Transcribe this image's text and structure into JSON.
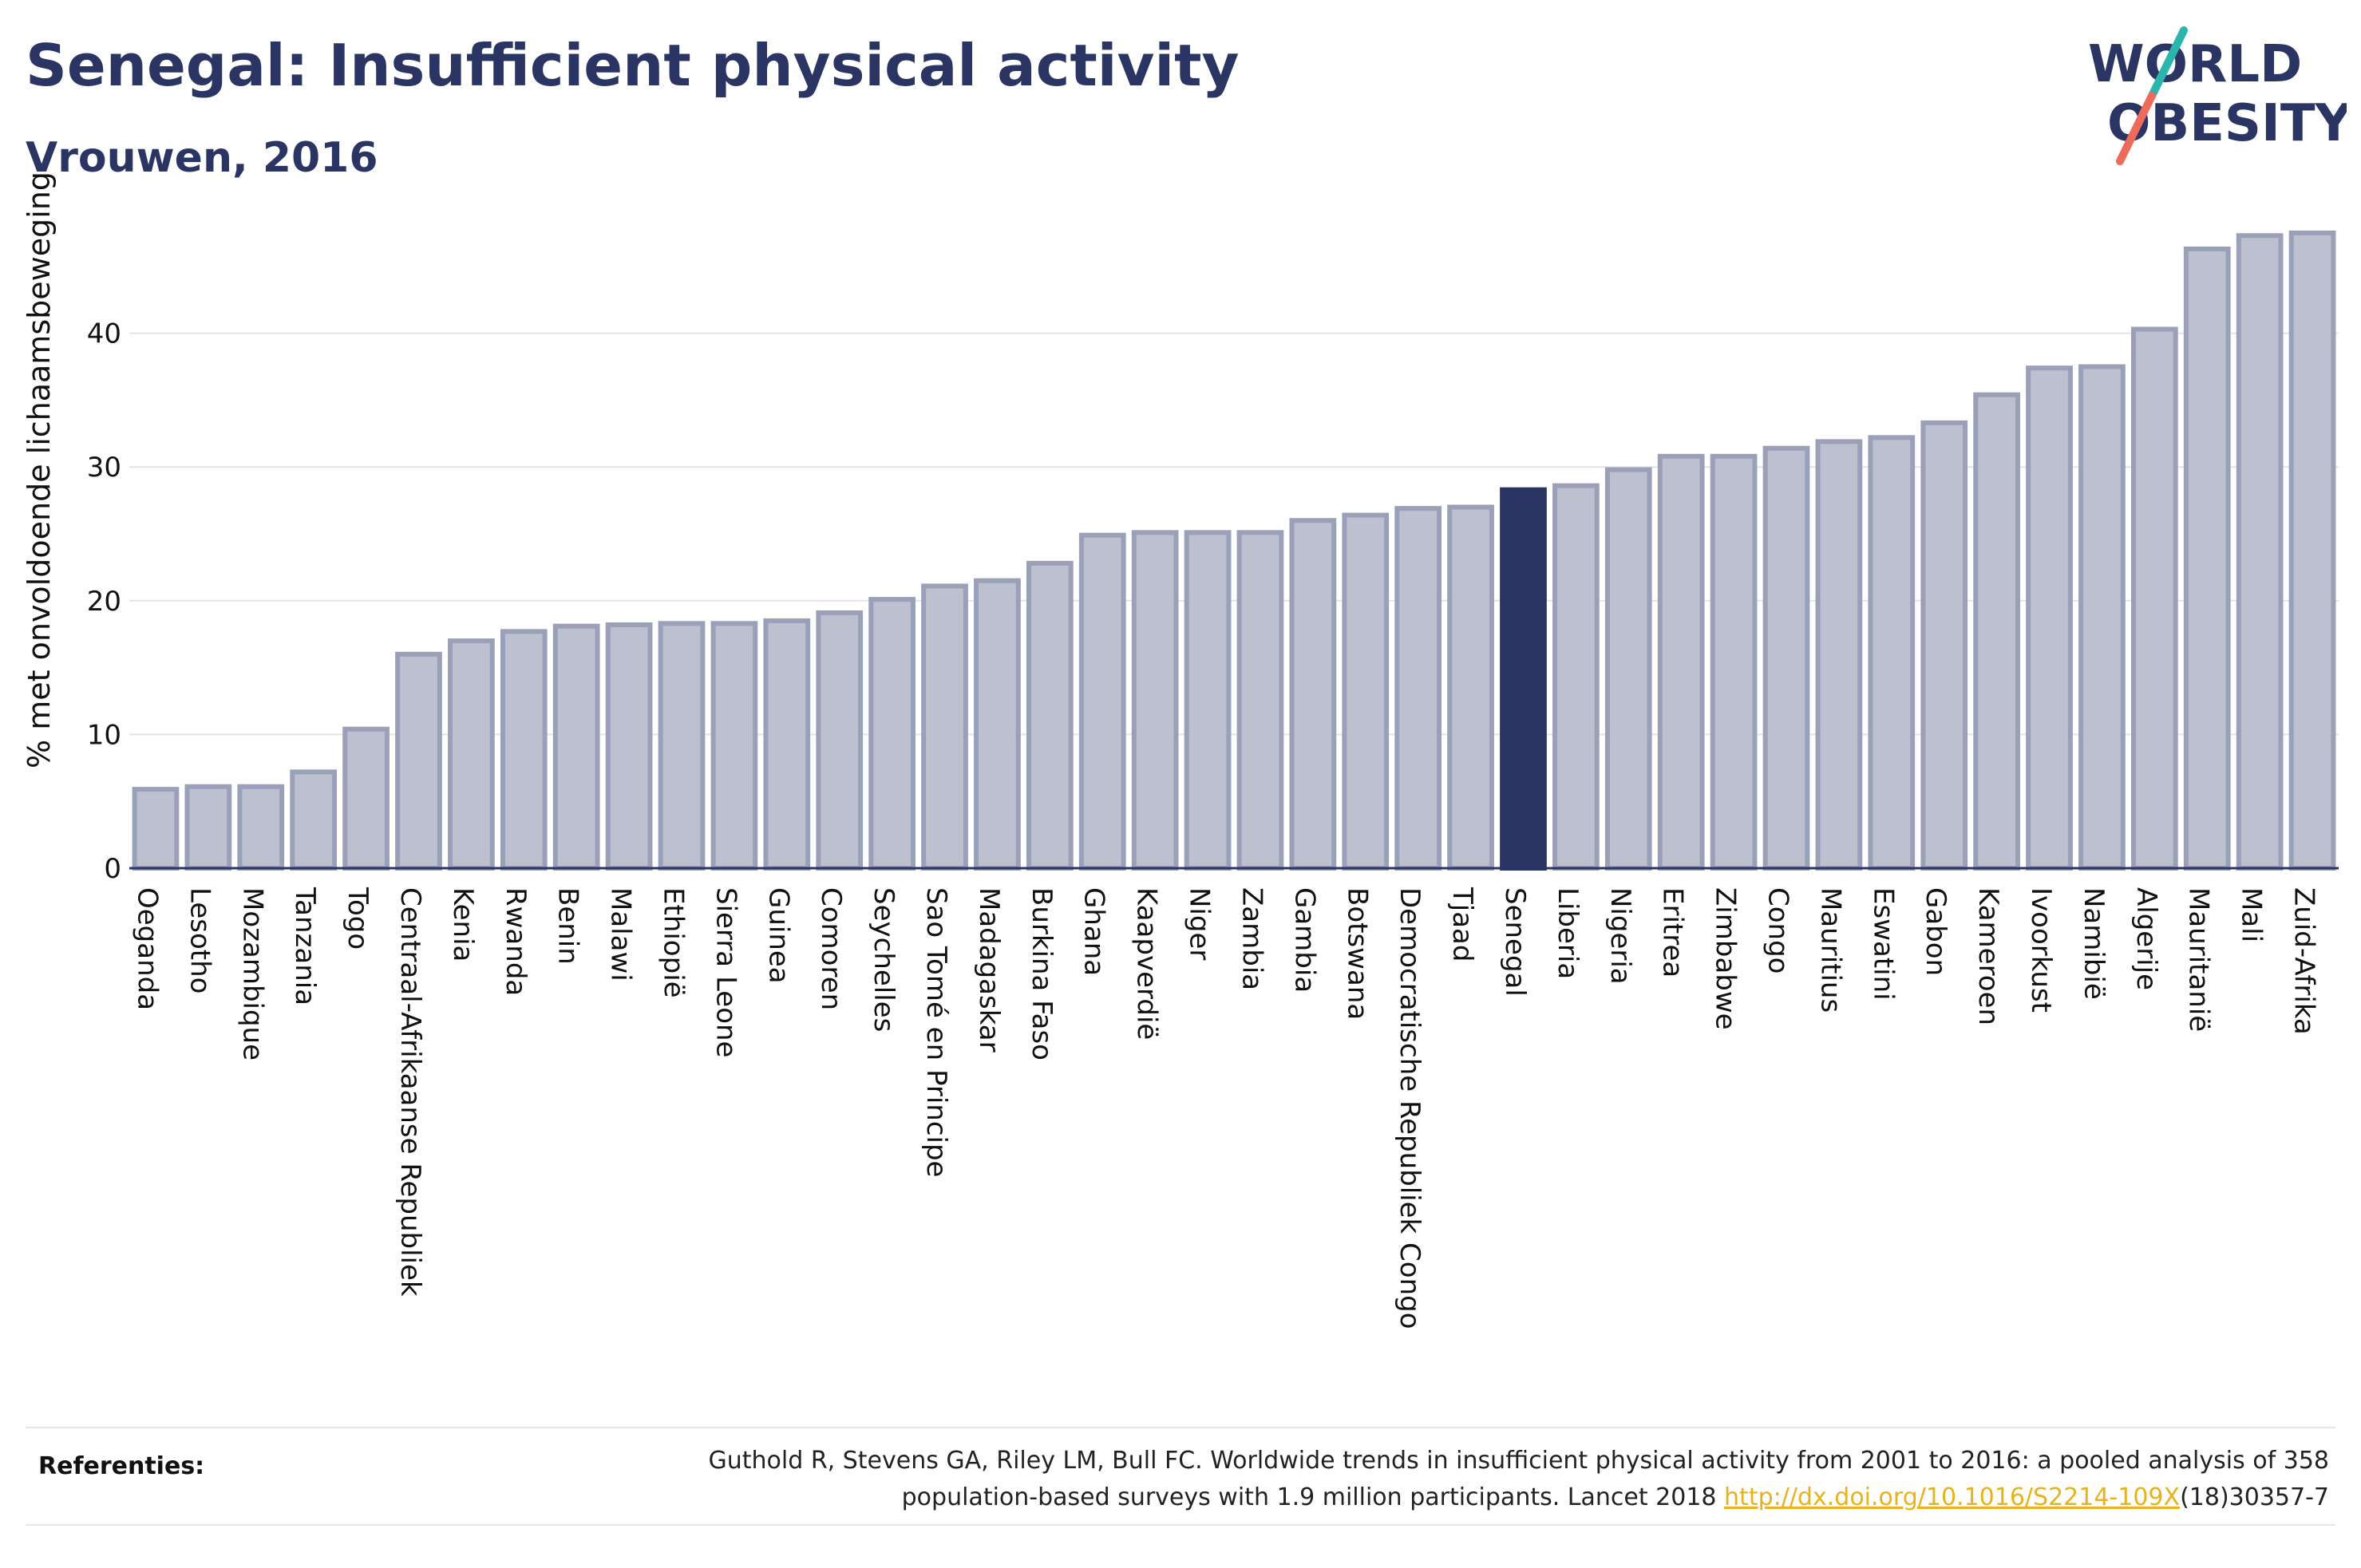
{
  "header": {
    "title": "Senegal: Insufficient physical activity",
    "subtitle": "Vrouwen, 2016"
  },
  "logo": {
    "line1": "WORLD",
    "line2": "OBESITY"
  },
  "colors": {
    "title": "#2a3563",
    "bar": "#bcc0cf",
    "bar_edge": "#9aa0b8",
    "highlight": "#2a3563",
    "logo_teal": "#2bb6ad",
    "logo_coral": "#ee6b5b",
    "link": "#e8b21e"
  },
  "chart_data": {
    "type": "bar",
    "title": "Senegal: Insufficient physical activity",
    "subtitle": "Vrouwen, 2016",
    "ylabel": "% met onvoldoende lichaamsbeweging",
    "xlabel": "",
    "ylim": [
      0,
      50
    ],
    "yticks": [
      0,
      10,
      20,
      30,
      40
    ],
    "grid": true,
    "highlight": "Senegal",
    "categories": [
      "Oeganda",
      "Lesotho",
      "Mozambique",
      "Tanzania",
      "Togo",
      "Centraal-Afrikaanse Republiek",
      "Kenia",
      "Rwanda",
      "Benin",
      "Malawi",
      "Ethiopië",
      "Sierra Leone",
      "Guinea",
      "Comoren",
      "Seychelles",
      "Sao Tomé en Principe",
      "Madagaskar",
      "Burkina Faso",
      "Ghana",
      "Kaapverdië",
      "Niger",
      "Zambia",
      "Gambia",
      "Botswana",
      "Democratische Republiek Congo",
      "Tjaad",
      "Senegal",
      "Liberia",
      "Nigeria",
      "Eritrea",
      "Zimbabwe",
      "Congo",
      "Mauritius",
      "Eswatini",
      "Gabon",
      "Kameroen",
      "Ivoorkust",
      "Namibië",
      "Algerije",
      "Mauritanië",
      "Mali",
      "Zuid-Afrika"
    ],
    "values": [
      5.9,
      6.1,
      6.1,
      7.2,
      10.4,
      16.0,
      17.0,
      17.7,
      18.1,
      18.2,
      18.3,
      18.3,
      18.5,
      19.1,
      20.1,
      21.1,
      21.5,
      22.8,
      24.9,
      25.1,
      25.1,
      25.1,
      26.0,
      26.4,
      26.9,
      27.0,
      28.3,
      28.6,
      29.8,
      30.8,
      30.8,
      31.4,
      31.9,
      32.2,
      33.3,
      35.4,
      37.4,
      37.5,
      40.3,
      46.3,
      47.3,
      47.5
    ]
  },
  "references": {
    "label": "Referenties:",
    "line1": "Guthold R, Stevens GA, Riley LM, Bull FC. Worldwide trends in insufficient physical activity from 2001 to 2016: a pooled analysis of 358",
    "line2_prefix": "population-based surveys with 1.9 million participants. Lancet 2018 ",
    "link": "http://dx.doi.org/10.1016/S2214-109X",
    "line2_suffix": "(18)30357-7"
  }
}
